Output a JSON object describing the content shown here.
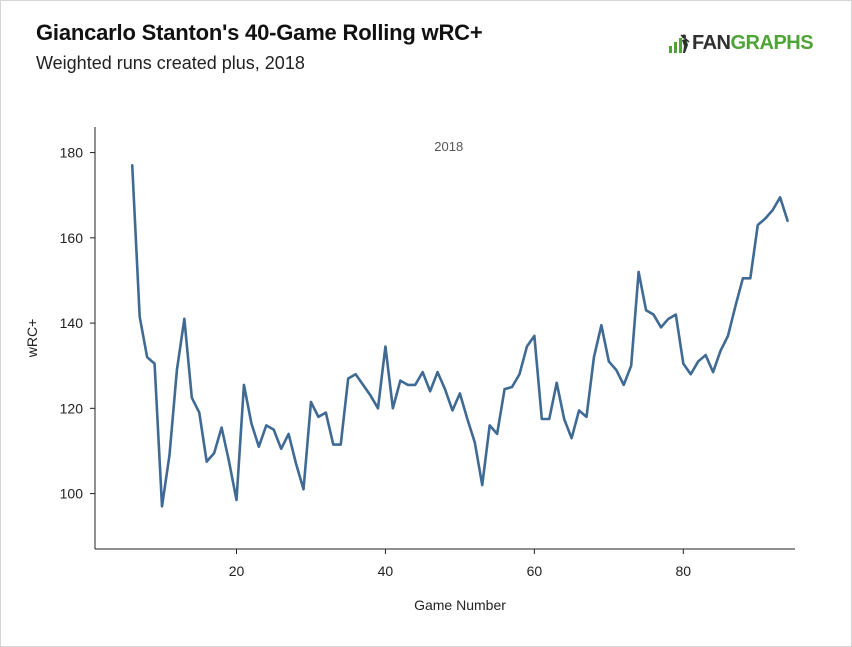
{
  "header": {
    "title": "Giancarlo Stanton's 40-Game Rolling wRC+",
    "subtitle": "Weighted runs created plus, 2018"
  },
  "logo": {
    "part1": "FAN",
    "part2": "GRAPHS",
    "icon": "fangraphs-batter-icon",
    "color": "#4fa437"
  },
  "chart_data": {
    "type": "line",
    "title": "Giancarlo Stanton's 40-Game Rolling wRC+",
    "subtitle": "Weighted runs created plus, 2018",
    "xlabel": "Game Number",
    "ylabel": "wRC+",
    "annotation": "2018",
    "xlim": [
      1,
      95
    ],
    "ylim": [
      87,
      186
    ],
    "xticks": [
      20,
      40,
      60,
      80
    ],
    "yticks": [
      100,
      120,
      140,
      160,
      180
    ],
    "grid": false,
    "line_color": "#3f6a94",
    "series": [
      {
        "x": [
          6,
          7,
          8,
          9,
          10,
          11,
          12,
          13,
          14,
          15,
          16,
          17,
          18,
          19,
          20,
          21,
          22,
          23,
          24,
          25,
          26,
          27,
          28,
          29,
          30,
          31,
          32,
          33,
          34,
          35,
          36,
          37,
          38,
          39,
          40,
          41,
          42,
          43,
          44,
          45,
          46,
          47,
          48,
          49,
          50,
          51,
          52,
          53,
          54,
          55,
          56,
          57,
          58,
          59,
          60,
          61,
          62,
          63,
          64,
          65,
          66,
          67,
          68,
          69,
          70,
          71,
          72,
          73,
          74,
          75,
          76,
          77,
          78,
          79,
          80,
          81,
          82,
          83,
          84,
          85,
          86,
          87,
          88,
          89,
          90,
          91,
          92,
          93,
          94
        ],
        "y": [
          177,
          141.5,
          132,
          130.5,
          97,
          109,
          129,
          141,
          122.5,
          119,
          107.5,
          109.5,
          115.5,
          107.5,
          98.5,
          125.5,
          116.5,
          111,
          116,
          115,
          110.5,
          114,
          107,
          101,
          121.5,
          118,
          119,
          111.5,
          111.5,
          127,
          128,
          125.5,
          123,
          120,
          134.5,
          120,
          126.5,
          125.5,
          125.5,
          128.5,
          124,
          128.5,
          124.5,
          119.5,
          123.5,
          117.5,
          112,
          102,
          116,
          114,
          124.5,
          125,
          128,
          134.5,
          137,
          117.5,
          117.5,
          126,
          117.5,
          113,
          119.5,
          118,
          132,
          139.5,
          131,
          129,
          125.5,
          130,
          152,
          143,
          142,
          139,
          141,
          142,
          130.5,
          128,
          131,
          132.5,
          128.5,
          133.5,
          137,
          144,
          150.5,
          150.5,
          163,
          164.5,
          166.5,
          169.5,
          164
        ]
      }
    ]
  }
}
